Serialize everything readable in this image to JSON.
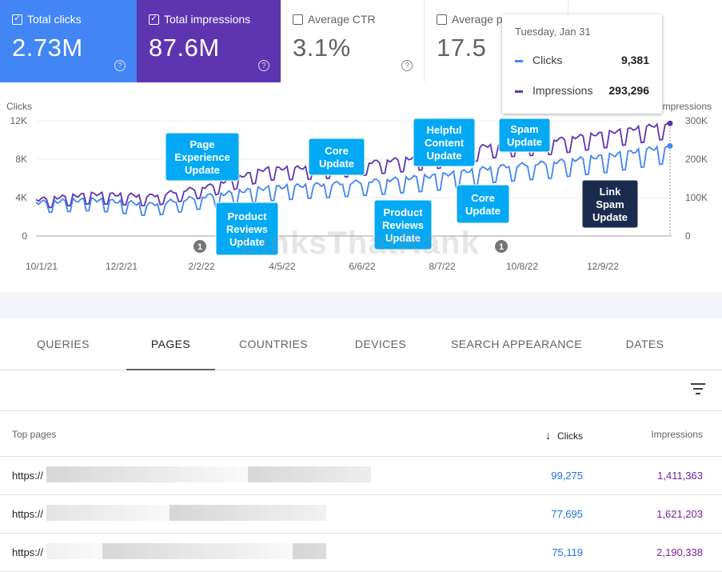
{
  "metrics": [
    {
      "label": "Total clicks",
      "value": "2.73M",
      "checked": true
    },
    {
      "label": "Total impressions",
      "value": "87.6M",
      "checked": true
    },
    {
      "label": "Average CTR",
      "value": "3.1%",
      "checked": false
    },
    {
      "label": "Average position",
      "value": "17.5",
      "checked": false
    }
  ],
  "metric_labels": {
    "clicks": "Total clicks",
    "impressions": "Total impressions",
    "ctr": "Average CTR",
    "position": "Average p"
  },
  "check_glyph": "✓",
  "help_glyph": "?",
  "tooltip": {
    "date": "Tuesday, Jan 31",
    "clicks_label": "Clicks",
    "clicks_value": "9,381",
    "impressions_label": "Impressions",
    "impressions_value": "293,296"
  },
  "colors": {
    "clicks": "#4285f4",
    "impressions": "#5e35b1",
    "callout": "#03a9f4",
    "callout_dark": "#1b2b4f"
  },
  "watermark": "LinksThatRank",
  "chart_data": {
    "type": "line",
    "y_left_label": "Clicks",
    "y_right_label": "Impressions",
    "y_left_ticks": [
      "12K",
      "8K",
      "4K",
      "0"
    ],
    "y_right_ticks": [
      "300K",
      "200K",
      "100K",
      "0"
    ],
    "ylim_left": [
      0,
      12000
    ],
    "ylim_right": [
      0,
      300000
    ],
    "x_ticks": [
      "10/1/21",
      "12/2/21",
      "2/2/22",
      "4/5/22",
      "6/6/22",
      "8/7/22",
      "10/8/22",
      "12/9/22"
    ],
    "series": [
      {
        "name": "Clicks",
        "start": 3500,
        "end": 9381,
        "trend": [
          3500,
          3800,
          3300,
          4200,
          5000,
          5400,
          5800,
          6300,
          7200,
          7700,
          8400,
          9381
        ],
        "weekly_dip": 1800
      },
      {
        "name": "Impressions",
        "start": 95000,
        "end": 293296,
        "trend": [
          95000,
          110000,
          105000,
          130000,
          175000,
          180000,
          195000,
          210000,
          240000,
          250000,
          270000,
          293296
        ],
        "weekly_dip": 40000
      }
    ],
    "annotations": [
      {
        "text": "Page\nExperience\nUpdate",
        "dark": false
      },
      {
        "text": "Product\nReviews\nUpdate",
        "dark": false
      },
      {
        "text": "Core\nUpdate",
        "dark": false
      },
      {
        "text": "Helpful\nContent\nUpdate",
        "dark": false
      },
      {
        "text": "Spam\nUpdate",
        "dark": false
      },
      {
        "text": "Product\nReviews\nUpdate",
        "dark": false
      },
      {
        "text": "Core\nUpdate",
        "dark": false
      },
      {
        "text": "Link\nSpam\nUpdate",
        "dark": true
      }
    ],
    "markers": [
      "1",
      "1"
    ]
  },
  "tabs": [
    {
      "label": "QUERIES",
      "active": false
    },
    {
      "label": "PAGES",
      "active": true
    },
    {
      "label": "COUNTRIES",
      "active": false
    },
    {
      "label": "DEVICES",
      "active": false
    },
    {
      "label": "SEARCH APPEARANCE",
      "active": false
    },
    {
      "label": "DATES",
      "active": false
    }
  ],
  "table": {
    "col_pages": "Top pages",
    "col_clicks": "Clicks",
    "col_impressions": "Impressions",
    "sort_glyph": "↓",
    "rows": [
      {
        "url": "https://",
        "clicks": "99,275",
        "impressions": "1,411,363"
      },
      {
        "url": "https://",
        "clicks": "77,695",
        "impressions": "1,621,203"
      },
      {
        "url": "https://",
        "clicks": "75,119",
        "impressions": "2,190,338"
      }
    ]
  }
}
